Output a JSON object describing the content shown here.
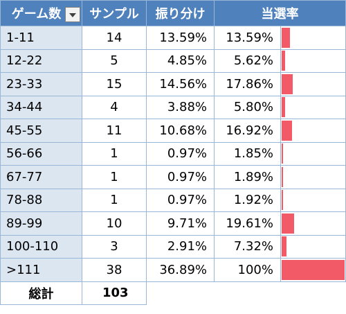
{
  "headers": {
    "games": "ゲーム数",
    "samples": "サンプル",
    "share": "振り分け",
    "rate": "当選率"
  },
  "rows": [
    {
      "range": "1-11",
      "samples": "14",
      "share": "13.59%",
      "rate": "13.59%",
      "rate_value": 13.59
    },
    {
      "range": "12-22",
      "samples": "5",
      "share": "4.85%",
      "rate": "5.62%",
      "rate_value": 5.62
    },
    {
      "range": "23-33",
      "samples": "15",
      "share": "14.56%",
      "rate": "17.86%",
      "rate_value": 17.86
    },
    {
      "range": "34-44",
      "samples": "4",
      "share": "3.88%",
      "rate": "5.80%",
      "rate_value": 5.8
    },
    {
      "range": "45-55",
      "samples": "11",
      "share": "10.68%",
      "rate": "16.92%",
      "rate_value": 16.92
    },
    {
      "range": "56-66",
      "samples": "1",
      "share": "0.97%",
      "rate": "1.85%",
      "rate_value": 1.85
    },
    {
      "range": "67-77",
      "samples": "1",
      "share": "0.97%",
      "rate": "1.89%",
      "rate_value": 1.89
    },
    {
      "range": "78-88",
      "samples": "1",
      "share": "0.97%",
      "rate": "1.92%",
      "rate_value": 1.92
    },
    {
      "range": "89-99",
      "samples": "10",
      "share": "9.71%",
      "rate": "19.61%",
      "rate_value": 19.61
    },
    {
      "range": "100-110",
      "samples": "3",
      "share": "2.91%",
      "rate": "7.32%",
      "rate_value": 7.32
    },
    {
      "range": ">111",
      "samples": "38",
      "share": "36.89%",
      "rate": "100%",
      "rate_value": 100
    }
  ],
  "total": {
    "label": "総計",
    "samples": "103"
  },
  "colors": {
    "header_bg": "#4f81bd",
    "category_bg": "#dce6f1",
    "bar": "#f25a67",
    "border": "#9ab6d6"
  },
  "bar_max": 100
}
